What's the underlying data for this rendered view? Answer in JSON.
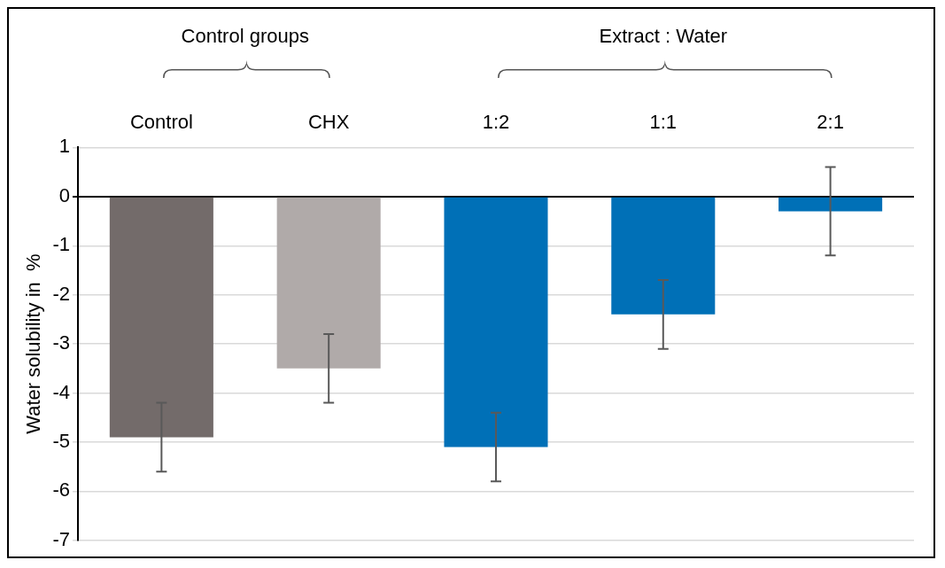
{
  "chart_data": {
    "type": "bar",
    "categories": [
      "Control",
      "CHX",
      "1:2",
      "1:1",
      "2:1"
    ],
    "values": [
      -4.9,
      -3.5,
      -5.1,
      -2.4,
      -0.3
    ],
    "colors": [
      "#736b6a",
      "#b0aaa9",
      "#0070b7",
      "#0070b7",
      "#0070b7"
    ],
    "errors": [
      0.7,
      0.7,
      0.7,
      0.7,
      0.9
    ],
    "ylabel": "Water solubility in  %",
    "ylim": [
      -7,
      1
    ],
    "yticks": [
      -7,
      -6,
      -5,
      -4,
      -3,
      -2,
      -1,
      0,
      1
    ],
    "grid": "y",
    "legend": false,
    "annotations": [
      "Control groups",
      "Extract : Water"
    ]
  }
}
